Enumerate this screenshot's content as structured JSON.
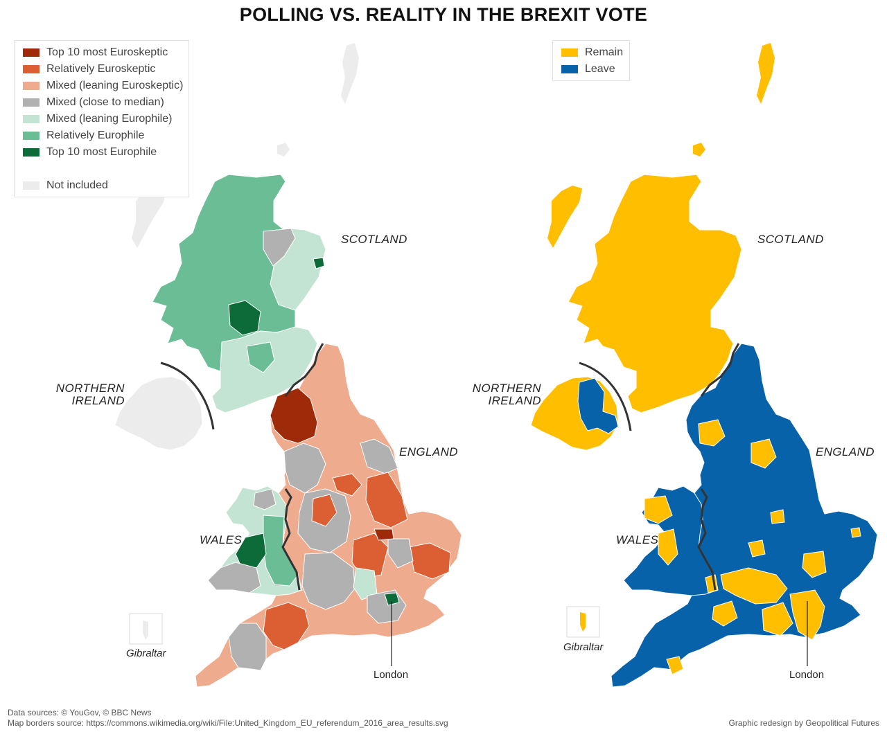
{
  "title": "POLLING VS. REALITY IN THE BREXIT VOTE",
  "legend_left": {
    "items": [
      {
        "label": "Top 10 most Euroskeptic",
        "color": "#9e2a0a"
      },
      {
        "label": "Relatively Euroskeptic",
        "color": "#dc5f33"
      },
      {
        "label": "Mixed (leaning Euroskeptic)",
        "color": "#efab8e"
      },
      {
        "label": "Mixed (close to median)",
        "color": "#b1b1b1"
      },
      {
        "label": "Mixed (leaning Europhile)",
        "color": "#c4e4d3"
      },
      {
        "label": "Relatively Europhile",
        "color": "#6bbd96"
      },
      {
        "label": "Top 10 most Europhile",
        "color": "#0c6b38"
      }
    ],
    "excluded": {
      "label": "Not included",
      "color": "#ececec"
    }
  },
  "legend_right": {
    "items": [
      {
        "label": "Remain",
        "color": "#ffbf00"
      },
      {
        "label": "Leave",
        "color": "#0862a9"
      }
    ]
  },
  "labels": {
    "scotland": "SCOTLAND",
    "northern_ireland": "NORTHERN\nIRELAND",
    "england": "ENGLAND",
    "wales": "WALES",
    "gibraltar": "Gibraltar",
    "london": "London"
  },
  "footer": {
    "line1": "Data sources: © YouGov, © BBC News",
    "line2": "Map borders source: https://commons.wikimedia.org/wiki/File:United_Kingdom_EU_referendum_2016_area_results.svg",
    "credit": "Graphic redesign by Geopolitical Futures"
  }
}
